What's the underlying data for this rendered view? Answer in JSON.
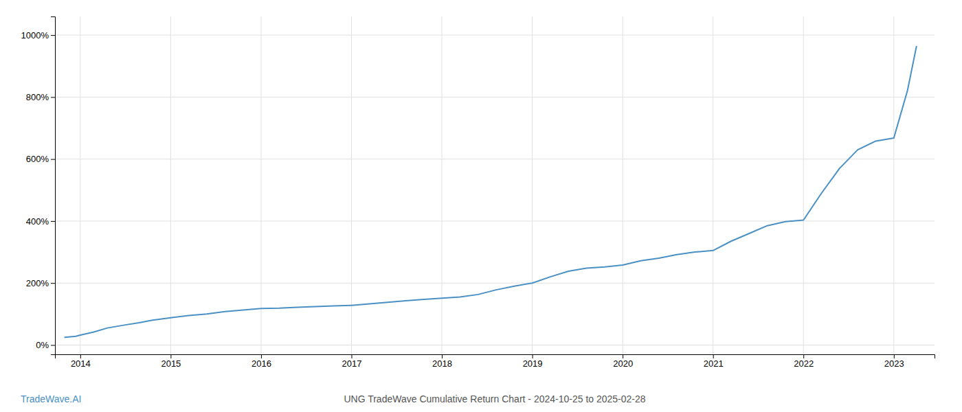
{
  "chart_data": {
    "type": "line",
    "color": "#4a90c4",
    "grid": true,
    "annotations": [
      {
        "text": "TradeWave.AI",
        "color": "#4a90c4"
      },
      {
        "text": "UNG TradeWave Cumulative Return Chart - 2024-10-25 to 2025-02-28"
      }
    ],
    "xlim": [
      2013.72,
      2023.45
    ],
    "xticks": [
      2014,
      2015,
      2016,
      2017,
      2018,
      2019,
      2020,
      2021,
      2022,
      2023
    ],
    "ylim": [
      -30,
      1060
    ],
    "yticks": [
      {
        "value": 0,
        "label": "0%"
      },
      {
        "value": 200,
        "label": "200%"
      },
      {
        "value": 400,
        "label": "400%"
      },
      {
        "value": 600,
        "label": "600%"
      },
      {
        "value": 800,
        "label": "800%"
      },
      {
        "value": 1000,
        "label": "1000%"
      }
    ],
    "x": [
      2013.83,
      2013.95,
      2014.0,
      2014.15,
      2014.3,
      2014.5,
      2014.65,
      2014.8,
      2015.0,
      2015.2,
      2015.4,
      2015.6,
      2015.8,
      2016.0,
      2016.2,
      2016.4,
      2016.6,
      2016.8,
      2017.0,
      2017.2,
      2017.4,
      2017.6,
      2017.8,
      2018.0,
      2018.2,
      2018.4,
      2018.6,
      2018.8,
      2019.0,
      2019.2,
      2019.4,
      2019.6,
      2019.8,
      2020.0,
      2020.2,
      2020.4,
      2020.6,
      2020.8,
      2021.0,
      2021.2,
      2021.4,
      2021.6,
      2021.8,
      2022.0,
      2022.2,
      2022.4,
      2022.6,
      2022.8,
      2023.0,
      2023.15,
      2023.25
    ],
    "values": [
      25,
      28,
      32,
      42,
      55,
      65,
      72,
      80,
      88,
      95,
      100,
      108,
      113,
      118,
      119,
      122,
      124,
      126,
      128,
      133,
      138,
      143,
      147,
      151,
      155,
      163,
      178,
      190,
      200,
      220,
      238,
      248,
      252,
      258,
      272,
      280,
      292,
      300,
      305,
      335,
      360,
      385,
      398,
      403,
      490,
      570,
      630,
      658,
      668,
      820,
      963
    ]
  }
}
